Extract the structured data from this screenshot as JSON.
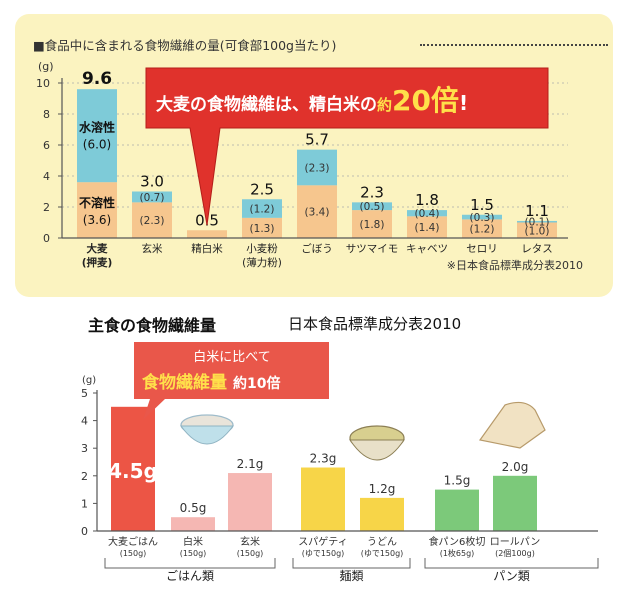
{
  "chart1": {
    "title": "■食品中に含まれる食物繊維の量(可食部100g当たり)",
    "unit": "(g)",
    "ylim": [
      0,
      10
    ],
    "yticks": [
      "0",
      "2",
      "4",
      "6",
      "8",
      "10"
    ],
    "callout": {
      "prefix": "大麦の食物繊維は、精白米の",
      "small": "約",
      "big": "20倍",
      "suffix": "!"
    },
    "source": "※日本食品標準成分表2010",
    "totals": [
      "9.6",
      "3.0",
      "0.5",
      "2.5",
      "5.7",
      "2.3",
      "1.8",
      "1.5",
      "1.1"
    ],
    "soluble_labels": [
      "(0.7)",
      "",
      "(1.2)",
      "(2.3)",
      "(0.5)",
      "(0.4)",
      "(0.3)",
      "(0.1)"
    ],
    "insoluble_labels": [
      "(2.3)",
      "",
      "(1.3)",
      "(3.4)",
      "(1.8)",
      "(1.4)",
      "(1.2)",
      "(1.0)"
    ],
    "barley_labels": {
      "soluble_name": "水溶性",
      "soluble_val": "(6.0)",
      "insoluble_name": "不溶性",
      "insoluble_val": "(3.6)"
    },
    "category_lines": [
      [
        "大麦",
        "(押麦)"
      ],
      [
        "玄米"
      ],
      [
        "精白米"
      ],
      [
        "小麦粉",
        "(薄力粉)"
      ],
      [
        "ごぼう"
      ],
      [
        "サツマイモ"
      ],
      [
        "キャベツ"
      ],
      [
        "セロリ"
      ],
      [
        "レタス"
      ]
    ]
  },
  "chart2": {
    "title": "主食の食物繊維量",
    "source": "日本食品標準成分表2010",
    "unit": "(g)",
    "ylim": [
      0,
      5
    ],
    "yticks": [
      "0",
      "1",
      "2",
      "3",
      "4",
      "5"
    ],
    "callout": {
      "line1": "白米に比べて",
      "line2": "食物繊維量",
      "line3": "約10倍"
    },
    "value_labels": [
      "4.5g",
      "0.5g",
      "2.1g",
      "2.3g",
      "1.2g",
      "1.5g",
      "2.0g"
    ],
    "category_lines": [
      [
        "大麦ごはん",
        "(150g)"
      ],
      [
        "白米",
        "(150g)"
      ],
      [
        "玄米",
        "(150g)"
      ],
      [
        "スパゲティ",
        "(ゆで150g)"
      ],
      [
        "うどん",
        "(ゆで150g)"
      ],
      [
        "食パン6枚切",
        "(1枚65g)"
      ],
      [
        "ロールパン",
        "(2個100g)"
      ]
    ],
    "group_labels": [
      "ごはん類",
      "麺類",
      "パン類"
    ]
  },
  "chart_data": [
    {
      "type": "bar",
      "stacked": true,
      "title": "食品中に含まれる食物繊維の量(可食部100g当たり)",
      "ylabel": "(g)",
      "ylim": [
        0,
        10
      ],
      "categories": [
        "大麦(押麦)",
        "玄米",
        "精白米",
        "小麦粉(薄力粉)",
        "ごぼう",
        "サツマイモ",
        "キャベツ",
        "セロリ",
        "レタス"
      ],
      "series": [
        {
          "name": "不溶性",
          "values": [
            3.6,
            2.3,
            0.5,
            1.3,
            3.4,
            1.8,
            1.4,
            1.2,
            1.0
          ]
        },
        {
          "name": "水溶性",
          "values": [
            6.0,
            0.7,
            0.0,
            1.2,
            2.3,
            0.5,
            0.4,
            0.3,
            0.1
          ]
        }
      ],
      "totals": [
        9.6,
        3.0,
        0.5,
        2.5,
        5.7,
        2.3,
        1.8,
        1.5,
        1.1
      ],
      "colors": {
        "soluble": "#7ecbd8",
        "insoluble": "#f6c68e",
        "highlight": "#e0322c"
      }
    },
    {
      "type": "bar",
      "title": "主食の食物繊維量",
      "ylabel": "(g)",
      "ylim": [
        0,
        5
      ],
      "categories": [
        "大麦ごはん(150g)",
        "白米(150g)",
        "玄米(150g)",
        "スパゲティ(ゆで150g)",
        "うどん(ゆで150g)",
        "食パン6枚切(1枚65g)",
        "ロールパン(2個100g)"
      ],
      "values": [
        4.5,
        0.5,
        2.1,
        2.3,
        1.2,
        1.5,
        2.0
      ],
      "groups": [
        {
          "name": "ごはん類",
          "members": [
            0,
            1,
            2
          ]
        },
        {
          "name": "麺類",
          "members": [
            3,
            4
          ]
        },
        {
          "name": "パン類",
          "members": [
            5,
            6
          ]
        }
      ],
      "colors": {
        "barley": "#ec5545",
        "rice": "#f5b7b3",
        "noodle": "#f7d548",
        "bread": "#7cc97a"
      }
    }
  ]
}
